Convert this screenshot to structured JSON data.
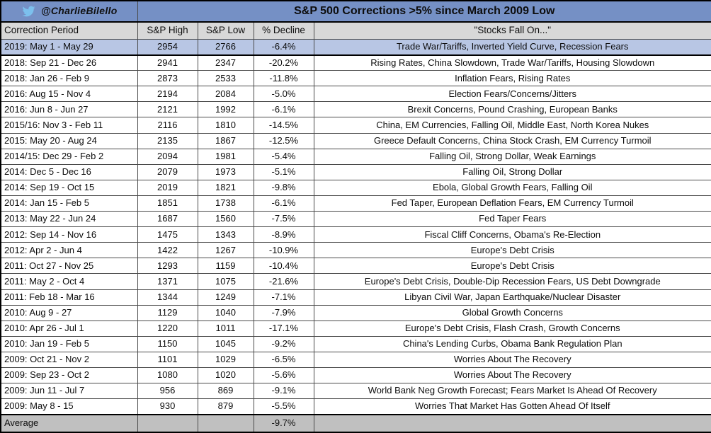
{
  "meta": {
    "twitter_handle": "@CharlieBilello",
    "twitter_bird_icon": "twitter-bird-icon"
  },
  "colors": {
    "title-bg": "#7590c5",
    "highlight-bg": "#b8c6e4",
    "header-bg": "#d8d8d8",
    "average-bg": "#c0c0c0",
    "bird-blue": "#7cc0ed"
  },
  "chart_data": {
    "type": "table",
    "title": "S&P 500 Corrections >5% since March 2009 Low",
    "columns": [
      "Correction Period",
      "S&P High",
      "S&P Low",
      "% Decline",
      "\"Stocks Fall On...\""
    ],
    "rows": [
      {
        "period": "2019: May 1 - May 29",
        "sp_high": 2954,
        "sp_low": 2766,
        "decline_pct": "-6.4%",
        "reason": "Trade War/Tariffs, Inverted Yield Curve, Recession Fears",
        "highlighted": true
      },
      {
        "period": "2018: Sep 21 - Dec 26",
        "sp_high": 2941,
        "sp_low": 2347,
        "decline_pct": "-20.2%",
        "reason": "Rising Rates, China Slowdown, Trade War/Tariffs, Housing Slowdown"
      },
      {
        "period": "2018: Jan 26 - Feb 9",
        "sp_high": 2873,
        "sp_low": 2533,
        "decline_pct": "-11.8%",
        "reason": "Inflation Fears, Rising Rates"
      },
      {
        "period": "2016: Aug 15 - Nov 4",
        "sp_high": 2194,
        "sp_low": 2084,
        "decline_pct": "-5.0%",
        "reason": "Election Fears/Concerns/Jitters"
      },
      {
        "period": "2016: Jun 8 - Jun 27",
        "sp_high": 2121,
        "sp_low": 1992,
        "decline_pct": "-6.1%",
        "reason": "Brexit Concerns, Pound Crashing, European Banks"
      },
      {
        "period": "2015/16: Nov 3 - Feb 11",
        "sp_high": 2116,
        "sp_low": 1810,
        "decline_pct": "-14.5%",
        "reason": "China, EM Currencies, Falling Oil, Middle East, North Korea Nukes"
      },
      {
        "period": "2015: May 20 - Aug 24",
        "sp_high": 2135,
        "sp_low": 1867,
        "decline_pct": "-12.5%",
        "reason": "Greece Default Concerns, China Stock Crash, EM Currency Turmoil"
      },
      {
        "period": "2014/15: Dec 29 - Feb 2",
        "sp_high": 2094,
        "sp_low": 1981,
        "decline_pct": "-5.4%",
        "reason": "Falling Oil, Strong Dollar, Weak Earnings"
      },
      {
        "period": "2014: Dec 5 - Dec 16",
        "sp_high": 2079,
        "sp_low": 1973,
        "decline_pct": "-5.1%",
        "reason": "Falling Oil, Strong Dollar"
      },
      {
        "period": "2014: Sep 19 - Oct 15",
        "sp_high": 2019,
        "sp_low": 1821,
        "decline_pct": "-9.8%",
        "reason": "Ebola, Global Growth Fears, Falling Oil"
      },
      {
        "period": "2014: Jan 15 - Feb 5",
        "sp_high": 1851,
        "sp_low": 1738,
        "decline_pct": "-6.1%",
        "reason": "Fed Taper, European Deflation Fears, EM Currency Turmoil"
      },
      {
        "period": "2013: May 22 - Jun 24",
        "sp_high": 1687,
        "sp_low": 1560,
        "decline_pct": "-7.5%",
        "reason": "Fed Taper Fears"
      },
      {
        "period": "2012: Sep 14 - Nov 16",
        "sp_high": 1475,
        "sp_low": 1343,
        "decline_pct": "-8.9%",
        "reason": "Fiscal Cliff Concerns, Obama's Re-Election"
      },
      {
        "period": "2012: Apr 2 - Jun 4",
        "sp_high": 1422,
        "sp_low": 1267,
        "decline_pct": "-10.9%",
        "reason": "Europe's Debt Crisis"
      },
      {
        "period": "2011: Oct 27 - Nov 25",
        "sp_high": 1293,
        "sp_low": 1159,
        "decline_pct": "-10.4%",
        "reason": "Europe's Debt Crisis"
      },
      {
        "period": "2011: May 2 - Oct 4",
        "sp_high": 1371,
        "sp_low": 1075,
        "decline_pct": "-21.6%",
        "reason": "Europe's Debt Crisis, Double-Dip Recession Fears, US Debt Downgrade"
      },
      {
        "period": "2011: Feb 18 - Mar 16",
        "sp_high": 1344,
        "sp_low": 1249,
        "decline_pct": "-7.1%",
        "reason": "Libyan Civil War, Japan Earthquake/Nuclear Disaster"
      },
      {
        "period": "2010: Aug 9 - 27",
        "sp_high": 1129,
        "sp_low": 1040,
        "decline_pct": "-7.9%",
        "reason": "Global Growth Concerns"
      },
      {
        "period": "2010: Apr 26 - Jul 1",
        "sp_high": 1220,
        "sp_low": 1011,
        "decline_pct": "-17.1%",
        "reason": "Europe's Debt Crisis, Flash Crash, Growth Concerns"
      },
      {
        "period": "2010: Jan 19 - Feb 5",
        "sp_high": 1150,
        "sp_low": 1045,
        "decline_pct": "-9.2%",
        "reason": "China's Lending Curbs, Obama Bank Regulation Plan"
      },
      {
        "period": "2009: Oct 21 - Nov 2",
        "sp_high": 1101,
        "sp_low": 1029,
        "decline_pct": "-6.5%",
        "reason": "Worries About The Recovery"
      },
      {
        "period": "2009: Sep 23 - Oct 2",
        "sp_high": 1080,
        "sp_low": 1020,
        "decline_pct": "-5.6%",
        "reason": "Worries About The Recovery"
      },
      {
        "period": "2009: Jun 11 - Jul 7",
        "sp_high": 956,
        "sp_low": 869,
        "decline_pct": "-9.1%",
        "reason": "World Bank Neg Growth Forecast; Fears Market Is Ahead Of Recovery"
      },
      {
        "period": "2009: May 8 - 15",
        "sp_high": 930,
        "sp_low": 879,
        "decline_pct": "-5.5%",
        "reason": "Worries That Market Has Gotten Ahead Of Itself"
      }
    ],
    "footer": {
      "label": "Average",
      "decline_pct": "-9.7%"
    }
  }
}
